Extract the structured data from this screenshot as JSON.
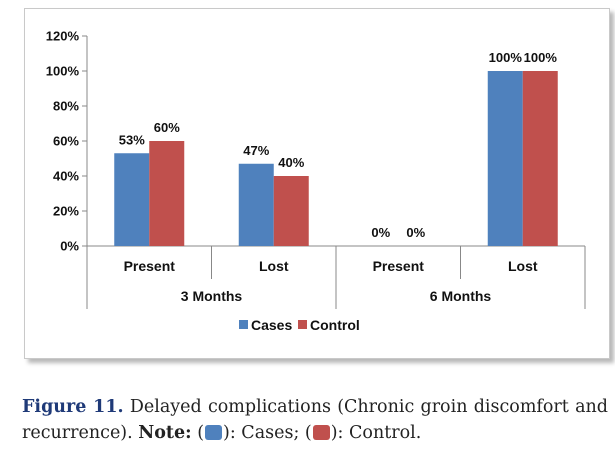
{
  "chart_data": {
    "type": "bar",
    "groups": [
      {
        "label": "3 Months",
        "categories": [
          "Present",
          "Lost"
        ]
      },
      {
        "label": "6 Months",
        "categories": [
          "Present",
          "Lost"
        ]
      }
    ],
    "categories": [
      "Present",
      "Lost",
      "Present",
      "Lost"
    ],
    "series": [
      {
        "name": "Cases",
        "color": "#4f81bd",
        "values": [
          53,
          47,
          0,
          100
        ],
        "labels": [
          "53%",
          "47%",
          "0%",
          "100%"
        ]
      },
      {
        "name": "Control",
        "color": "#c0504d",
        "values": [
          60,
          40,
          0,
          100
        ],
        "labels": [
          "60%",
          "40%",
          "0%",
          "100%"
        ]
      }
    ],
    "yticks": [
      "0%",
      "20%",
      "40%",
      "60%",
      "80%",
      "100%",
      "120%"
    ],
    "ylim": [
      0,
      120
    ],
    "legend_position": "bottom",
    "grid": false
  },
  "caption": {
    "label": "Figure 11.",
    "text": " Delayed complications (Chronic groin discomfort and recurrence). ",
    "note_label": "Note:",
    "cases_text": "): Cases; (",
    "control_text": "): Control.",
    "open_paren": " (",
    "cases_color": "#4f81bd",
    "control_color": "#c0504d"
  }
}
